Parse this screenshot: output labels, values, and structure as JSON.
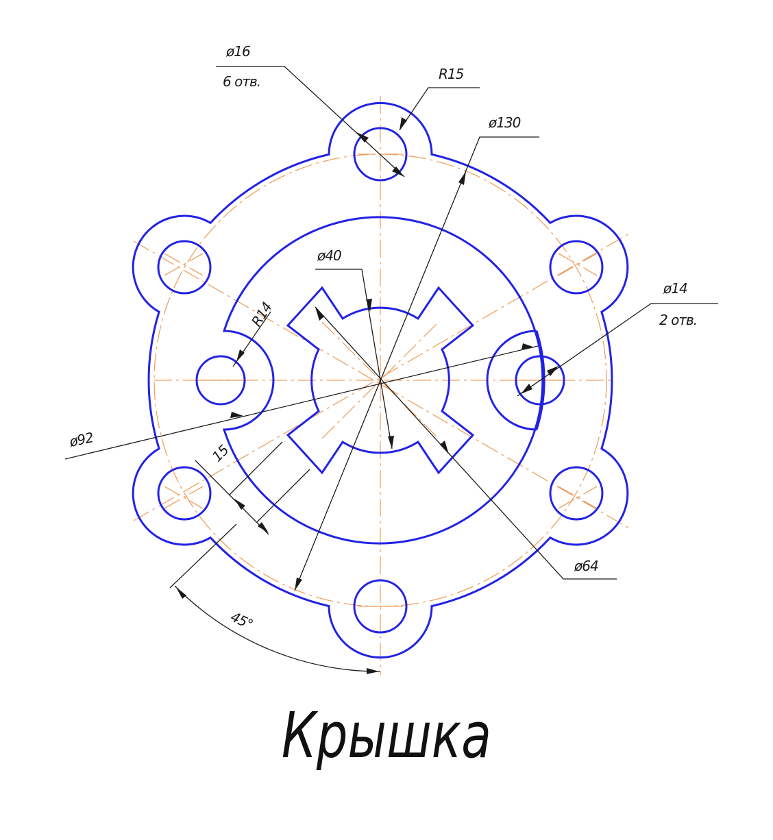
{
  "title": "Крышка",
  "colors": {
    "contour": "#2222e6",
    "centerline": "#f0a060",
    "dimension": "#1a1a1a",
    "background": "#ffffff"
  },
  "dimensions": {
    "d16": "ø16",
    "d16_count": "6 отв.",
    "r15": "R15",
    "d130": "ø130",
    "d40": "ø40",
    "r14": "R14",
    "d14": "ø14",
    "d14_count": "2 отв.",
    "d92": "ø92",
    "d64": "ø64",
    "w15": "15",
    "angle": "45°"
  }
}
